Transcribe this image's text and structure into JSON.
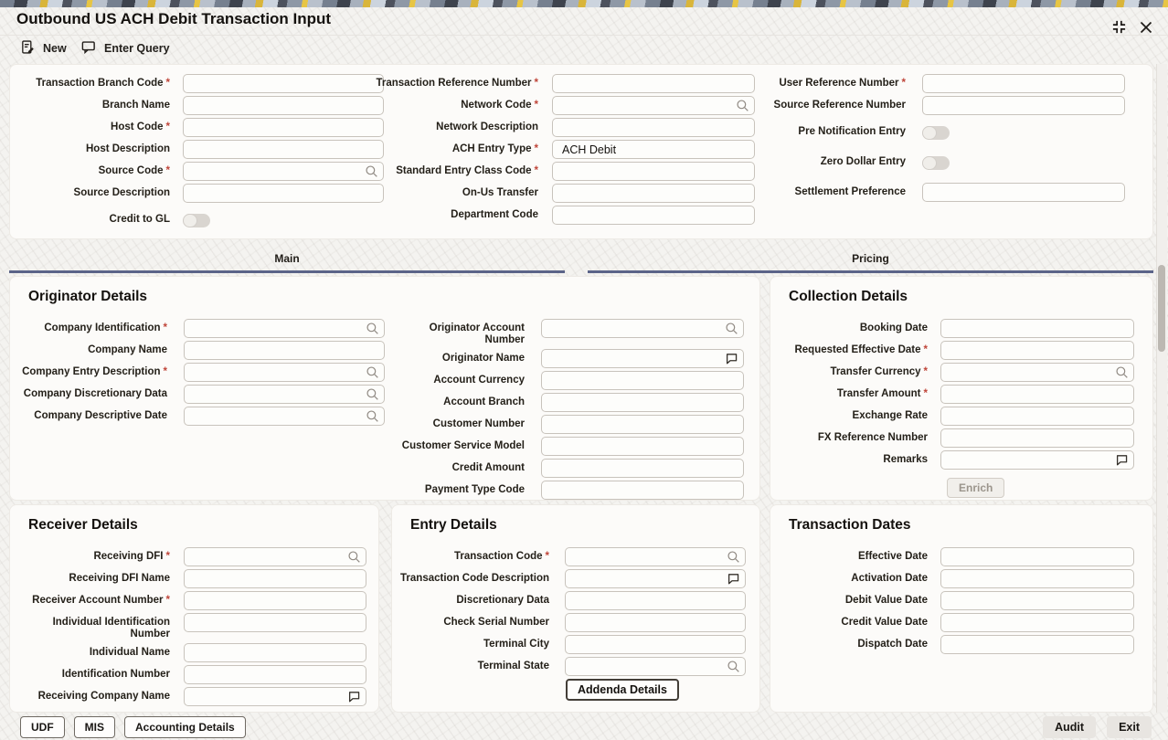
{
  "window": {
    "title": "Outbound US ACH Debit Transaction Input"
  },
  "toolbar": {
    "actions": [
      {
        "label": "New",
        "icon": "new-document-icon"
      },
      {
        "label": "Enter Query",
        "icon": "query-bubble-icon"
      }
    ]
  },
  "tabs": [
    {
      "label": "Main",
      "active": true
    },
    {
      "label": "Pricing",
      "active": false
    }
  ],
  "header": {
    "columns": [
      [
        {
          "label": "Transaction Branch Code",
          "required": true,
          "control": "text",
          "value": ""
        },
        {
          "label": "Branch Name",
          "control": "text",
          "value": ""
        },
        {
          "label": "Host Code",
          "required": true,
          "control": "text",
          "value": ""
        },
        {
          "label": "Host Description",
          "control": "text",
          "value": ""
        },
        {
          "label": "Source Code",
          "required": true,
          "control": "lov",
          "value": ""
        },
        {
          "label": "Source Description",
          "control": "text",
          "value": ""
        },
        {
          "label": "Credit to GL",
          "control": "toggle",
          "state": "off"
        }
      ],
      [
        {
          "label": "Transaction Reference Number",
          "required": true,
          "control": "text",
          "value": ""
        },
        {
          "label": "Network Code",
          "required": true,
          "control": "lov",
          "value": ""
        },
        {
          "label": "Network Description",
          "control": "text",
          "value": ""
        },
        {
          "label": "ACH Entry Type",
          "required": true,
          "control": "text",
          "value": "ACH Debit"
        },
        {
          "label": "Standard Entry Class Code",
          "required": true,
          "control": "text",
          "value": ""
        },
        {
          "label": "On-Us Transfer",
          "control": "text",
          "value": ""
        },
        {
          "label": "Department Code",
          "control": "text",
          "value": ""
        }
      ],
      [
        {
          "label": "User Reference Number",
          "required": true,
          "control": "text",
          "value": ""
        },
        {
          "label": "Source Reference Number",
          "control": "text",
          "value": ""
        },
        {
          "label": "Pre Notification Entry",
          "control": "toggle",
          "state": "off"
        },
        {
          "label": "Zero Dollar Entry",
          "control": "toggle",
          "state": "off"
        },
        {
          "label": "Settlement Preference",
          "control": "text",
          "value": ""
        }
      ]
    ]
  },
  "originator": {
    "title": "Originator Details",
    "columns": [
      [
        {
          "label": "Company Identification",
          "required": true,
          "control": "lov",
          "value": ""
        },
        {
          "label": "Company Name",
          "control": "text",
          "value": ""
        },
        {
          "label": "Company Entry Description",
          "required": true,
          "control": "lov",
          "value": ""
        },
        {
          "label": "Company Discretionary Data",
          "control": "lov",
          "value": ""
        },
        {
          "label": "Company Descriptive Date",
          "control": "lov",
          "value": ""
        }
      ],
      [
        {
          "label": "Originator Account Number",
          "control": "lov",
          "value": ""
        },
        {
          "label": "Originator Name",
          "control": "comment",
          "value": ""
        },
        {
          "label": "Account Currency",
          "control": "text",
          "value": ""
        },
        {
          "label": "Account Branch",
          "control": "text",
          "value": ""
        },
        {
          "label": "Customer Number",
          "control": "text",
          "value": ""
        },
        {
          "label": "Customer Service Model",
          "control": "text",
          "value": ""
        },
        {
          "label": "Credit Amount",
          "control": "text",
          "value": ""
        },
        {
          "label": "Payment Type Code",
          "control": "text",
          "value": ""
        }
      ]
    ]
  },
  "collection": {
    "title": "Collection Details",
    "fields": [
      {
        "label": "Booking Date",
        "control": "text",
        "value": ""
      },
      {
        "label": "Requested Effective Date",
        "required": true,
        "control": "text",
        "value": ""
      },
      {
        "label": "Transfer Currency",
        "required": true,
        "control": "lov",
        "value": ""
      },
      {
        "label": "Transfer Amount",
        "required": true,
        "control": "text",
        "value": ""
      },
      {
        "label": "Exchange Rate",
        "control": "text",
        "value": ""
      },
      {
        "label": "FX Reference Number",
        "control": "text",
        "value": ""
      },
      {
        "label": "Remarks",
        "control": "comment",
        "value": ""
      }
    ],
    "enrich_button": {
      "label": "Enrich",
      "enabled": false
    }
  },
  "receiver": {
    "title": "Receiver Details",
    "fields": [
      {
        "label": "Receiving DFI",
        "required": true,
        "control": "lov",
        "value": ""
      },
      {
        "label": "Receiving DFI Name",
        "control": "text",
        "value": ""
      },
      {
        "label": "Receiver Account Number",
        "required": true,
        "control": "text",
        "value": ""
      },
      {
        "label": "Individual Identification Number",
        "control": "text",
        "value": ""
      },
      {
        "label": "Individual Name",
        "control": "text",
        "value": ""
      },
      {
        "label": "Identification Number",
        "control": "text",
        "value": ""
      },
      {
        "label": "Receiving Company Name",
        "control": "comment",
        "value": ""
      }
    ]
  },
  "entry": {
    "title": "Entry Details",
    "fields": [
      {
        "label": "Transaction Code",
        "required": true,
        "control": "lov",
        "value": ""
      },
      {
        "label": "Transaction Code Description",
        "control": "comment",
        "value": ""
      },
      {
        "label": "Discretionary Data",
        "control": "text",
        "value": ""
      },
      {
        "label": "Check Serial Number",
        "control": "text",
        "value": ""
      },
      {
        "label": "Terminal City",
        "control": "text",
        "value": ""
      },
      {
        "label": "Terminal State",
        "control": "lov",
        "value": ""
      }
    ],
    "addenda_button": {
      "label": "Addenda Details"
    }
  },
  "transaction_dates": {
    "title": "Transaction Dates",
    "fields": [
      {
        "label": "Effective Date",
        "control": "text",
        "value": ""
      },
      {
        "label": "Activation Date",
        "control": "text",
        "value": ""
      },
      {
        "label": "Debit Value Date",
        "control": "text",
        "value": ""
      },
      {
        "label": "Credit Value Date",
        "control": "text",
        "value": ""
      },
      {
        "label": "Dispatch Date",
        "control": "text",
        "value": ""
      }
    ]
  },
  "footer": {
    "left_buttons": [
      {
        "label": "UDF"
      },
      {
        "label": "MIS"
      },
      {
        "label": "Accounting Details"
      }
    ],
    "right_buttons": [
      {
        "label": "Audit"
      },
      {
        "label": "Exit"
      }
    ]
  },
  "icons": {
    "lov": "lov-search-icon",
    "comment": "text-editor-icon",
    "maximize": "expand-corners-icon",
    "close": "close-icon"
  },
  "colors": {
    "required_marker": "#bf4438",
    "tab_underline": "#5b6488",
    "toggle_off_track": "#d9d5d0",
    "card_background": "#fcfbf9",
    "stripe_yellow": "#d9b53a",
    "stripe_slate": "#76808f"
  }
}
